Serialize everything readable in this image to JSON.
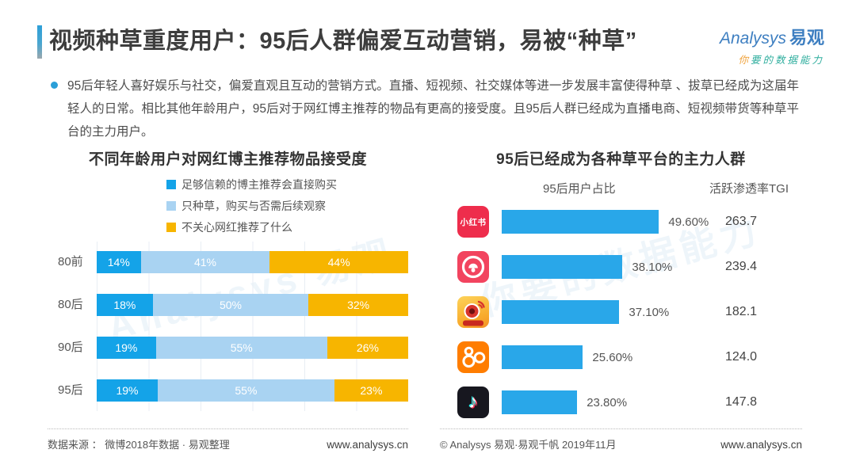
{
  "header": {
    "title": "视频种草重度用户：95后人群偏爱互动营销，易被“种草”",
    "logo": {
      "brand_en": "Analysys",
      "brand_cn": "易观",
      "tagline_first": "你",
      "tagline_rest": "要的数据能力"
    }
  },
  "summary": {
    "text": "95后年轻人喜好娱乐与社交，偏爱直观且互动的营销方式。直播、短视频、社交媒体等进一步发展丰富使得种草 、拔草已经成为这届年轻人的日常。相比其他年龄用户，95后对于网红博主推荐的物品有更高的接受度。且95后人群已经成为直播电商、短视频带货等种草平台的主力用户。"
  },
  "chart_data": [
    {
      "type": "bar",
      "orientation": "horizontal-stacked-100pct",
      "title": "不同年龄用户对网红博主推荐物品接受度",
      "categories": [
        "80前",
        "80后",
        "90后",
        "95后"
      ],
      "series": [
        {
          "name": "足够信赖的博主推荐会直接购买",
          "color": "#14a3e8",
          "values": [
            14,
            18,
            19,
            19
          ],
          "labels": [
            "14%",
            "18%",
            "19%",
            "19%"
          ]
        },
        {
          "name": "只种草，购买与否需后续观察",
          "color": "#a9d3f2",
          "values": [
            41,
            50,
            55,
            55
          ],
          "labels": [
            "41%",
            "50%",
            "55%",
            "55%"
          ]
        },
        {
          "name": "不关心网红推荐了什么",
          "color": "#f7b500",
          "values": [
            44,
            32,
            26,
            23
          ],
          "labels": [
            "44%",
            "32%",
            "26%",
            "23%"
          ]
        }
      ],
      "value_suffix": "%",
      "grid": "vertical-lines",
      "legend_position": "top"
    },
    {
      "type": "bar",
      "orientation": "horizontal",
      "title": "95后已经成为各种草平台的主力人群",
      "col_headers": [
        "95后用户占比",
        "活跃渗透率TGI"
      ],
      "bar_color": "#29a7e9",
      "rows": [
        {
          "platform": "小红书",
          "icon": "xiaohongshu-icon",
          "share": "49.60%",
          "share_value": 49.6,
          "tgi": "263.7"
        },
        {
          "platform": "蘑菇街",
          "icon": "mogujie-icon",
          "share": "38.10%",
          "share_value": 38.1,
          "tgi": "239.4"
        },
        {
          "platform": "微博",
          "icon": "weibo-icon",
          "share": "37.10%",
          "share_value": 37.1,
          "tgi": "182.1"
        },
        {
          "platform": "快手",
          "icon": "kuaishou-icon",
          "share": "25.60%",
          "share_value": 25.6,
          "tgi": "124.0"
        },
        {
          "platform": "抖音",
          "icon": "douyin-icon",
          "share": "23.80%",
          "share_value": 23.8,
          "tgi": "147.8"
        }
      ]
    }
  ],
  "footer": {
    "left_source": "数据来源 ：  微博2018年数据 · 易观整理",
    "left_site": "www.analysys.cn",
    "right_copyright": "© Analysys 易观·易观千帆 2019年11月",
    "right_site": "www.analysys.cn"
  },
  "watermark": {
    "text1": "Analysys 易观",
    "text2": "你要的数据能力"
  }
}
